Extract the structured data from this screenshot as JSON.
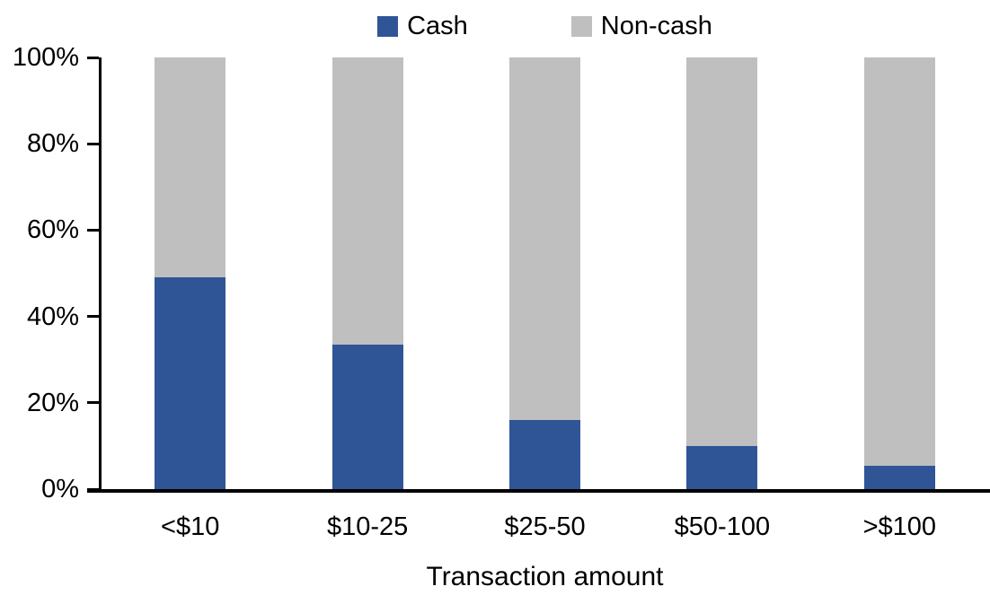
{
  "chart_data": {
    "type": "bar",
    "variant": "stacked-100-percent-column",
    "title": "",
    "xlabel": "Transaction amount",
    "ylabel": "",
    "categories": [
      "<$10",
      "$10-25",
      "$25-50",
      "$50-100",
      ">$100"
    ],
    "series": [
      {
        "name": "Cash",
        "color": "#2F5597",
        "values": [
          49,
          33.5,
          16,
          10,
          5.5
        ]
      },
      {
        "name": "Non-cash",
        "color": "#BFBFBF",
        "values": [
          51,
          66.5,
          84,
          90,
          94.5
        ]
      }
    ],
    "ylim": [
      0,
      100
    ],
    "yticks": [
      0,
      20,
      40,
      60,
      80,
      100
    ],
    "ytick_labels": [
      "0%",
      "20%",
      "40%",
      "60%",
      "80%",
      "100%"
    ],
    "grid": false,
    "legend_position": "top-center",
    "axis_color": "#000000",
    "background_color": "#FFFFFF"
  }
}
